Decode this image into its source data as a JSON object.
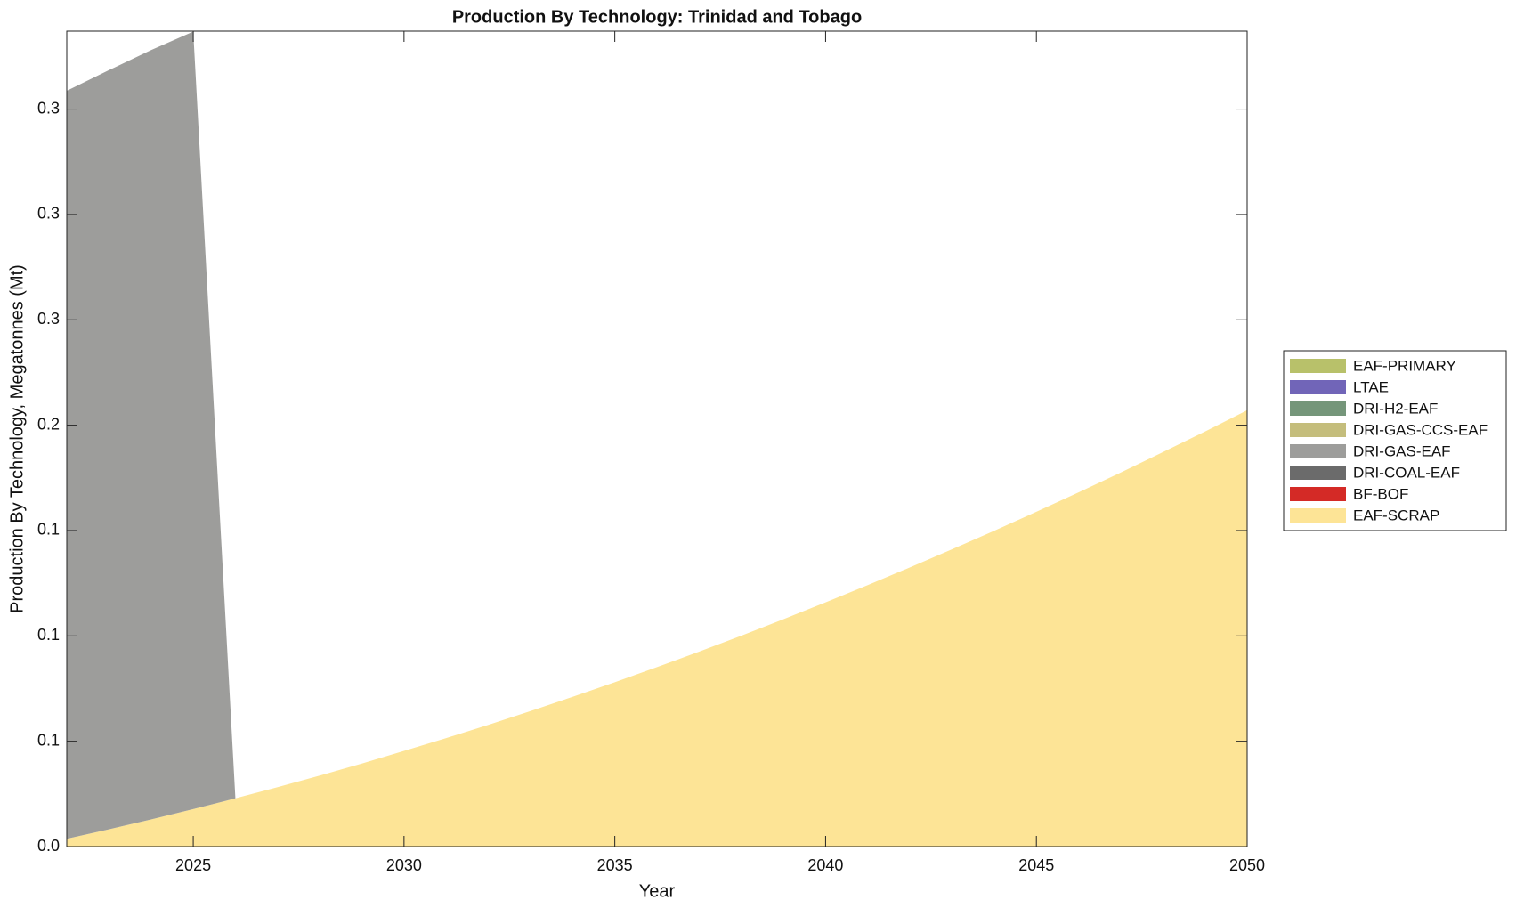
{
  "chart_data": {
    "type": "stacked_area",
    "title": "Production By Technology: Trinidad and Tobago",
    "xlabel": "Year",
    "ylabel": "Production By Technology, Megatonnes (Mt)",
    "x": [
      2022,
      2023,
      2024,
      2025,
      2026,
      2027,
      2028,
      2029,
      2030,
      2031,
      2032,
      2033,
      2034,
      2035,
      2036,
      2037,
      2038,
      2039,
      2040,
      2041,
      2042,
      2043,
      2044,
      2045,
      2046,
      2047,
      2048,
      2049,
      2050
    ],
    "xlim": [
      2022,
      2050
    ],
    "xticks": [
      2025,
      2030,
      2035,
      2040,
      2045,
      2050
    ],
    "ylim": [
      0,
      0.387
    ],
    "yticks": [
      {
        "value": 0,
        "label": "0.0"
      },
      {
        "value": 0.05,
        "label": "0.1"
      },
      {
        "value": 0.1,
        "label": "0.1"
      },
      {
        "value": 0.15,
        "label": "0.1"
      },
      {
        "value": 0.2,
        "label": "0.2"
      },
      {
        "value": 0.25,
        "label": "0.3"
      },
      {
        "value": 0.3,
        "label": "0.3"
      },
      {
        "value": 0.35,
        "label": "0.3"
      }
    ],
    "legend": "right",
    "series": [
      {
        "name": "EAF-PRIMARY",
        "color": "#b8c16a",
        "values": [
          0,
          0,
          0,
          0,
          0,
          0,
          0,
          0,
          0,
          0,
          0,
          0,
          0,
          0,
          0,
          0,
          0,
          0,
          0,
          0,
          0,
          0,
          0,
          0,
          0,
          0,
          0,
          0,
          0
        ]
      },
      {
        "name": "LTAE",
        "color": "#7165b8",
        "values": [
          0,
          0,
          0,
          0,
          0,
          0,
          0,
          0,
          0,
          0,
          0,
          0,
          0,
          0,
          0,
          0,
          0,
          0,
          0,
          0,
          0,
          0,
          0,
          0,
          0,
          0,
          0,
          0,
          0
        ]
      },
      {
        "name": "DRI-H2-EAF",
        "color": "#75967a",
        "values": [
          0,
          0,
          0,
          0,
          0,
          0,
          0,
          0,
          0,
          0,
          0,
          0,
          0,
          0,
          0,
          0,
          0,
          0,
          0,
          0,
          0,
          0,
          0,
          0,
          0,
          0,
          0,
          0,
          0
        ]
      },
      {
        "name": "DRI-GAS-CCS-EAF",
        "color": "#c4bd7c",
        "values": [
          0,
          0,
          0,
          0,
          0,
          0,
          0,
          0,
          0,
          0,
          0,
          0,
          0,
          0,
          0,
          0,
          0,
          0,
          0,
          0,
          0,
          0,
          0,
          0,
          0,
          0,
          0,
          0,
          0
        ]
      },
      {
        "name": "DRI-GAS-EAF",
        "color": "#9d9d9b",
        "values": [
          0.355,
          0.3603,
          0.3651,
          0.369,
          0,
          0,
          0,
          0,
          0,
          0,
          0,
          0,
          0,
          0,
          0,
          0,
          0,
          0,
          0,
          0,
          0,
          0,
          0,
          0,
          0,
          0,
          0,
          0,
          0
        ]
      },
      {
        "name": "DRI-COAL-EAF",
        "color": "#6b6b6b",
        "values": [
          0,
          0,
          0,
          0,
          0,
          0,
          0,
          0,
          0,
          0,
          0,
          0,
          0,
          0,
          0,
          0,
          0,
          0,
          0,
          0,
          0,
          0,
          0,
          0,
          0,
          0,
          0,
          0,
          0
        ]
      },
      {
        "name": "BF-BOF",
        "color": "#d42a26",
        "values": [
          0,
          0,
          0,
          0,
          0,
          0,
          0,
          0,
          0,
          0,
          0,
          0,
          0,
          0,
          0,
          0,
          0,
          0,
          0,
          0,
          0,
          0,
          0,
          0,
          0,
          0,
          0,
          0,
          0
        ]
      },
      {
        "name": "EAF-SCRAP",
        "color": "#fde496",
        "values": [
          0.0037,
          0.0082,
          0.0129,
          0.0178,
          0.0229,
          0.0282,
          0.0337,
          0.0394,
          0.0454,
          0.0515,
          0.0578,
          0.0643,
          0.0711,
          0.078,
          0.0852,
          0.0925,
          0.1001,
          0.1079,
          0.1159,
          0.1241,
          0.1325,
          0.1411,
          0.1499,
          0.1589,
          0.1681,
          0.1775,
          0.1872,
          0.197,
          0.2071
        ]
      }
    ]
  }
}
